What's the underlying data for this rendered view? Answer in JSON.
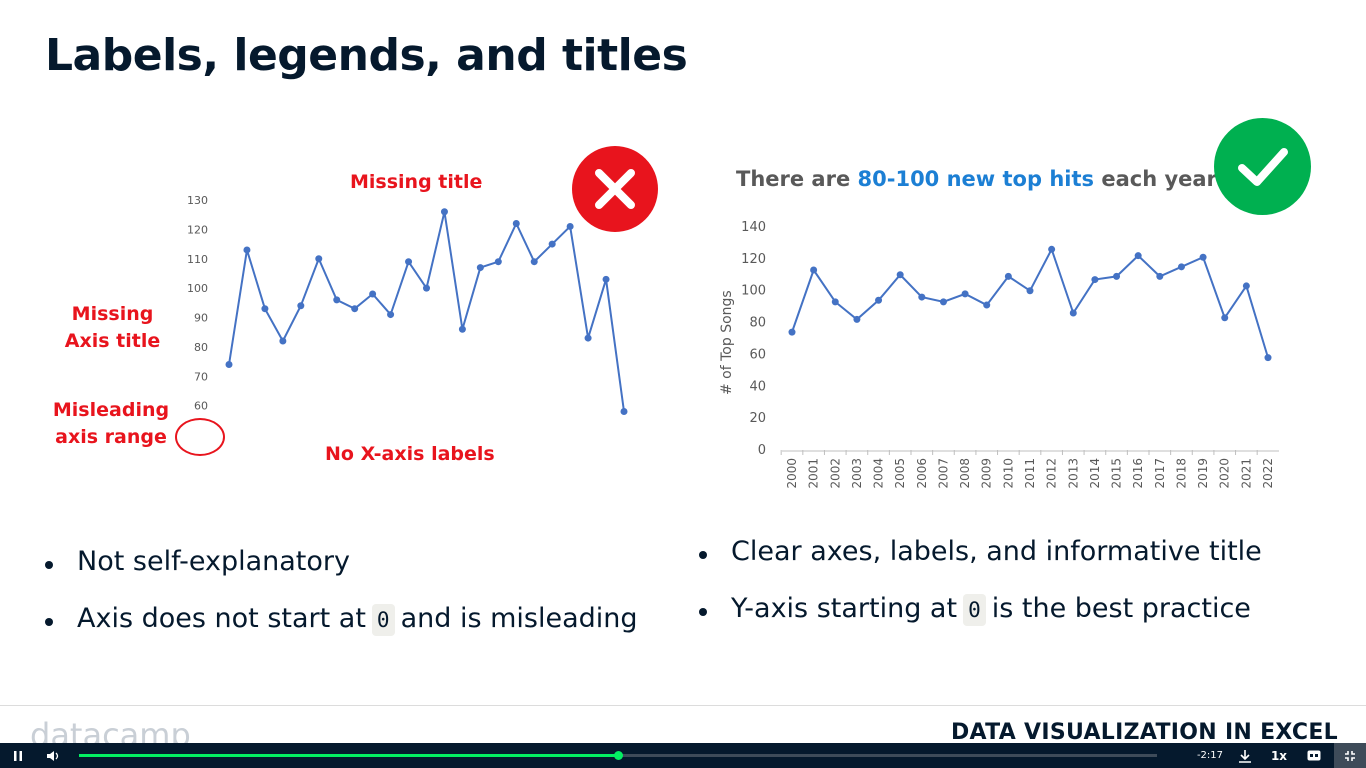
{
  "slide": {
    "title": "Labels, legends, and titles"
  },
  "left_panel": {
    "annotations": {
      "missing_title": "Missing title",
      "missing_axis_line1": "Missing",
      "missing_axis_line2": "Axis title",
      "misleading_line1": "Misleading",
      "misleading_line2": "axis range",
      "no_x_labels": "No X-axis labels"
    },
    "badge_icon": "cross-icon",
    "badge_color": "#e8141d",
    "bullets": [
      {
        "text": "Not self-explanatory"
      },
      {
        "pre": "Axis does not start at",
        "code": "0",
        "post": "and is misleading"
      }
    ]
  },
  "right_panel": {
    "title_pre": "There are",
    "title_highlight": "80-100 new top hits",
    "title_post": "each year",
    "highlight_color": "#1c7fd4",
    "badge_icon": "check-icon",
    "badge_color": "#00b050",
    "bullets": [
      {
        "text": "Clear axes, labels, and informative title"
      },
      {
        "pre": "Y-axis starting at",
        "code": "0",
        "post": "is the best practice"
      }
    ]
  },
  "chart_data": [
    {
      "type": "line",
      "title": "",
      "xlabel": "",
      "ylabel": "",
      "x": [
        "2000",
        "2001",
        "2002",
        "2003",
        "2004",
        "2005",
        "2006",
        "2007",
        "2008",
        "2009",
        "2010",
        "2011",
        "2012",
        "2013",
        "2014",
        "2015",
        "2016",
        "2017",
        "2018",
        "2019",
        "2020",
        "2021",
        "2022"
      ],
      "series": [
        {
          "values": [
            74,
            113,
            93,
            82,
            94,
            110,
            96,
            93,
            98,
            91,
            109,
            100,
            126,
            86,
            107,
            109,
            122,
            109,
            115,
            121,
            83,
            103,
            58
          ]
        }
      ],
      "ylim": [
        50,
        130
      ],
      "yticks": [
        "50",
        "60",
        "70",
        "80",
        "90",
        "100",
        "110",
        "120",
        "130"
      ],
      "x_tick_labels_shown": false,
      "color": "#4472c4"
    },
    {
      "type": "line",
      "title": "There are 80-100 new top hits each year",
      "xlabel": "",
      "ylabel": "# of Top Songs",
      "x": [
        "2000",
        "2001",
        "2002",
        "2003",
        "2004",
        "2005",
        "2006",
        "2007",
        "2008",
        "2009",
        "2010",
        "2011",
        "2012",
        "2013",
        "2014",
        "2015",
        "2016",
        "2017",
        "2018",
        "2019",
        "2020",
        "2021",
        "2022"
      ],
      "series": [
        {
          "values": [
            74,
            113,
            93,
            82,
            94,
            110,
            96,
            93,
            98,
            91,
            109,
            100,
            126,
            86,
            107,
            109,
            122,
            109,
            115,
            121,
            83,
            103,
            58
          ]
        }
      ],
      "ylim": [
        0,
        140
      ],
      "yticks": [
        "0",
        "20",
        "40",
        "60",
        "80",
        "100",
        "120",
        "140"
      ],
      "x_tick_labels_shown": true,
      "color": "#4472c4"
    }
  ],
  "footer": {
    "logo_text": "datacamp",
    "course": "DATA VISUALIZATION IN EXCEL"
  },
  "player": {
    "play_icon": "pause-icon",
    "volume_icon": "volume-icon",
    "time": "-2:17",
    "progress": 0.5,
    "download_icon": "download-icon",
    "speed": "1x",
    "cc_icon": "captions-icon",
    "fullscreen_icon": "exit-fullscreen-icon"
  }
}
